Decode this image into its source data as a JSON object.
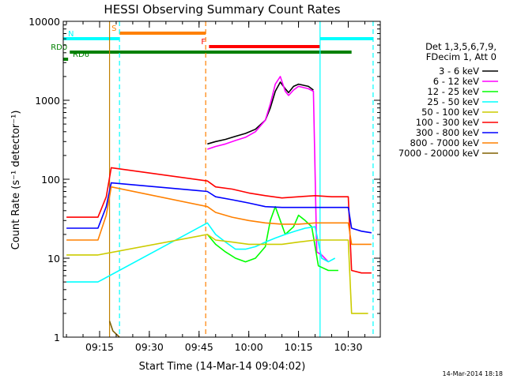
{
  "chart_data": {
    "type": "line",
    "title": "HESSI Observing Summary Count Rates",
    "xlabel": "Start Time (14-Mar-14 09:04:02)",
    "ylabel": "Count Rate (s⁻¹ detector⁻¹)",
    "yscale": "log",
    "xlim": [
      "09:04:02",
      "10:39:40"
    ],
    "ylim": [
      1,
      10000
    ],
    "x_ticks": [
      "09:15",
      "09:30",
      "09:45",
      "10:00",
      "10:15",
      "10:30"
    ],
    "y_ticks": [
      "1",
      "10",
      "100",
      "1000",
      "10000"
    ],
    "grid": false,
    "legend_position": "right",
    "legend_header": [
      "Det 1,3,5,6,7,9,",
      "FDecim 1, Att 0"
    ],
    "timestamp": "14-Mar-2014 18:18",
    "flags": [
      {
        "label": "S",
        "color": "#ff8000",
        "start": "09:21:00",
        "end": "09:47:00"
      },
      {
        "label": "N",
        "color": "#00ffff",
        "start": "09:04:02",
        "end": "09:21:00"
      },
      {
        "label": "F",
        "color": "#ff0000",
        "start": "09:48:00",
        "end": "10:21:30"
      },
      {
        "label": "",
        "color": "#00ffff",
        "start": "10:21:30",
        "end": "10:37:30"
      },
      {
        "label": "RD0",
        "color": "#008000",
        "start": "09:06:00",
        "end": "10:31:00"
      },
      {
        "label": "RD6",
        "color": "#008000",
        "start": "09:04:02",
        "end": "09:05:30"
      }
    ],
    "vertical_markers": [
      {
        "time": "09:18:00",
        "color": "#c08000",
        "style": "solid"
      },
      {
        "time": "09:21:00",
        "color": "#00ffff",
        "style": "dashed"
      },
      {
        "time": "09:47:00",
        "color": "#ff8000",
        "style": "dashed"
      },
      {
        "time": "10:21:30",
        "color": "#00ffff",
        "style": "solid"
      },
      {
        "time": "10:37:30",
        "color": "#00ffff",
        "style": "dashed"
      }
    ],
    "series": [
      {
        "name": "3 - 6 keV",
        "color": "#000000",
        "points": [
          [
            "09:47:30",
            280
          ],
          [
            "09:50:00",
            300
          ],
          [
            "09:53:00",
            320
          ],
          [
            "09:56:00",
            350
          ],
          [
            "09:59:00",
            380
          ],
          [
            "10:02:00",
            430
          ],
          [
            "10:05:00",
            560
          ],
          [
            "10:06:30",
            800
          ],
          [
            "10:08:00",
            1300
          ],
          [
            "10:09:30",
            1700
          ],
          [
            "10:11:00",
            1400
          ],
          [
            "10:12:00",
            1250
          ],
          [
            "10:13:30",
            1500
          ],
          [
            "10:15:00",
            1600
          ],
          [
            "10:16:30",
            1550
          ],
          [
            "10:18:00",
            1500
          ],
          [
            "10:19:30",
            1350
          ]
        ]
      },
      {
        "name": "6 - 12 keV",
        "color": "#ff00ff",
        "points": [
          [
            "09:47:30",
            240
          ],
          [
            "09:50:00",
            260
          ],
          [
            "09:53:00",
            280
          ],
          [
            "09:56:00",
            310
          ],
          [
            "09:59:00",
            340
          ],
          [
            "10:02:00",
            400
          ],
          [
            "10:05:00",
            560
          ],
          [
            "10:06:30",
            900
          ],
          [
            "10:08:00",
            1600
          ],
          [
            "10:09:30",
            2000
          ],
          [
            "10:11:00",
            1300
          ],
          [
            "10:12:00",
            1150
          ],
          [
            "10:13:30",
            1350
          ],
          [
            "10:15:00",
            1500
          ],
          [
            "10:16:30",
            1450
          ],
          [
            "10:18:00",
            1400
          ],
          [
            "10:19:30",
            1300
          ],
          [
            "10:20:30",
            12
          ],
          [
            "10:22:00",
            11
          ],
          [
            "10:24:00",
            9
          ]
        ]
      },
      {
        "name": "12 - 25 keV",
        "color": "#00ff00",
        "points": [
          [
            "09:47:30",
            20
          ],
          [
            "09:50:00",
            15
          ],
          [
            "09:53:00",
            12
          ],
          [
            "09:56:00",
            10
          ],
          [
            "09:59:00",
            9
          ],
          [
            "10:02:00",
            10
          ],
          [
            "10:05:00",
            14
          ],
          [
            "10:06:30",
            30
          ],
          [
            "10:08:00",
            45
          ],
          [
            "10:09:30",
            30
          ],
          [
            "10:11:00",
            20
          ],
          [
            "10:13:30",
            25
          ],
          [
            "10:15:00",
            35
          ],
          [
            "10:17:00",
            30
          ],
          [
            "10:19:00",
            25
          ],
          [
            "10:21:00",
            8
          ],
          [
            "10:24:00",
            7
          ],
          [
            "10:27:00",
            7
          ]
        ]
      },
      {
        "name": "25 - 50 keV",
        "color": "#00ffff",
        "points": [
          [
            "09:05:00",
            5
          ],
          [
            "09:10:00",
            5
          ],
          [
            "09:14:30",
            5
          ],
          [
            "09:47:30",
            28
          ],
          [
            "09:50:00",
            20
          ],
          [
            "09:53:00",
            16
          ],
          [
            "09:56:00",
            13
          ],
          [
            "09:59:00",
            13
          ],
          [
            "10:02:00",
            14
          ],
          [
            "10:05:00",
            16
          ],
          [
            "10:08:00",
            18
          ],
          [
            "10:11:00",
            20
          ],
          [
            "10:14:00",
            22
          ],
          [
            "10:17:00",
            24
          ],
          [
            "10:20:00",
            25
          ],
          [
            "10:22:00",
            10
          ],
          [
            "10:24:00",
            9
          ],
          [
            "10:26:00",
            10
          ]
        ]
      },
      {
        "name": "50 - 100 keV",
        "color": "#cccc00",
        "points": [
          [
            "09:05:00",
            11
          ],
          [
            "09:10:00",
            11
          ],
          [
            "09:14:30",
            11
          ],
          [
            "09:47:30",
            20
          ],
          [
            "09:50:00",
            17
          ],
          [
            "09:55:00",
            16
          ],
          [
            "10:00:00",
            15
          ],
          [
            "10:05:00",
            15
          ],
          [
            "10:10:00",
            15
          ],
          [
            "10:15:00",
            16
          ],
          [
            "10:20:00",
            17
          ],
          [
            "10:25:00",
            17
          ],
          [
            "10:30:00",
            17
          ],
          [
            "10:31:00",
            2
          ],
          [
            "10:34:00",
            2
          ],
          [
            "10:36:00",
            2
          ]
        ]
      },
      {
        "name": "100 - 300 keV",
        "color": "#ff0000",
        "points": [
          [
            "09:05:00",
            33
          ],
          [
            "09:10:00",
            33
          ],
          [
            "09:14:30",
            33
          ],
          [
            "09:17:00",
            60
          ],
          [
            "09:18:30",
            140
          ],
          [
            "09:47:30",
            95
          ],
          [
            "09:50:00",
            80
          ],
          [
            "09:55:00",
            75
          ],
          [
            "10:00:00",
            67
          ],
          [
            "10:05:00",
            62
          ],
          [
            "10:10:00",
            58
          ],
          [
            "10:15:00",
            60
          ],
          [
            "10:20:00",
            62
          ],
          [
            "10:25:00",
            60
          ],
          [
            "10:30:00",
            60
          ],
          [
            "10:31:00",
            7
          ],
          [
            "10:34:00",
            6.5
          ],
          [
            "10:37:00",
            6.5
          ]
        ]
      },
      {
        "name": "300 - 800 keV",
        "color": "#0000ff",
        "points": [
          [
            "09:05:00",
            24
          ],
          [
            "09:10:00",
            24
          ],
          [
            "09:14:30",
            24
          ],
          [
            "09:17:00",
            45
          ],
          [
            "09:18:30",
            90
          ],
          [
            "09:47:30",
            70
          ],
          [
            "09:50:00",
            60
          ],
          [
            "09:55:00",
            55
          ],
          [
            "10:00:00",
            50
          ],
          [
            "10:05:00",
            45
          ],
          [
            "10:10:00",
            44
          ],
          [
            "10:15:00",
            44
          ],
          [
            "10:20:00",
            44
          ],
          [
            "10:25:00",
            44
          ],
          [
            "10:30:00",
            44
          ],
          [
            "10:31:00",
            24
          ],
          [
            "10:34:00",
            22
          ],
          [
            "10:37:00",
            21
          ]
        ]
      },
      {
        "name": "800 - 7000 keV",
        "color": "#ff8000",
        "points": [
          [
            "09:05:00",
            17
          ],
          [
            "09:10:00",
            17
          ],
          [
            "09:14:30",
            17
          ],
          [
            "09:17:00",
            35
          ],
          [
            "09:18:30",
            80
          ],
          [
            "09:47:30",
            45
          ],
          [
            "09:50:00",
            38
          ],
          [
            "09:55:00",
            33
          ],
          [
            "10:00:00",
            30
          ],
          [
            "10:05:00",
            28
          ],
          [
            "10:10:00",
            27
          ],
          [
            "10:15:00",
            27
          ],
          [
            "10:20:00",
            28
          ],
          [
            "10:25:00",
            28
          ],
          [
            "10:30:00",
            28
          ],
          [
            "10:31:00",
            15
          ],
          [
            "10:34:00",
            15
          ],
          [
            "10:37:00",
            15
          ]
        ]
      },
      {
        "name": "7000 - 20000 keV",
        "color": "#806000",
        "points": [
          [
            "09:18:00",
            1.6
          ],
          [
            "09:19:00",
            1.2
          ],
          [
            "09:21:00",
            1
          ]
        ]
      }
    ]
  }
}
